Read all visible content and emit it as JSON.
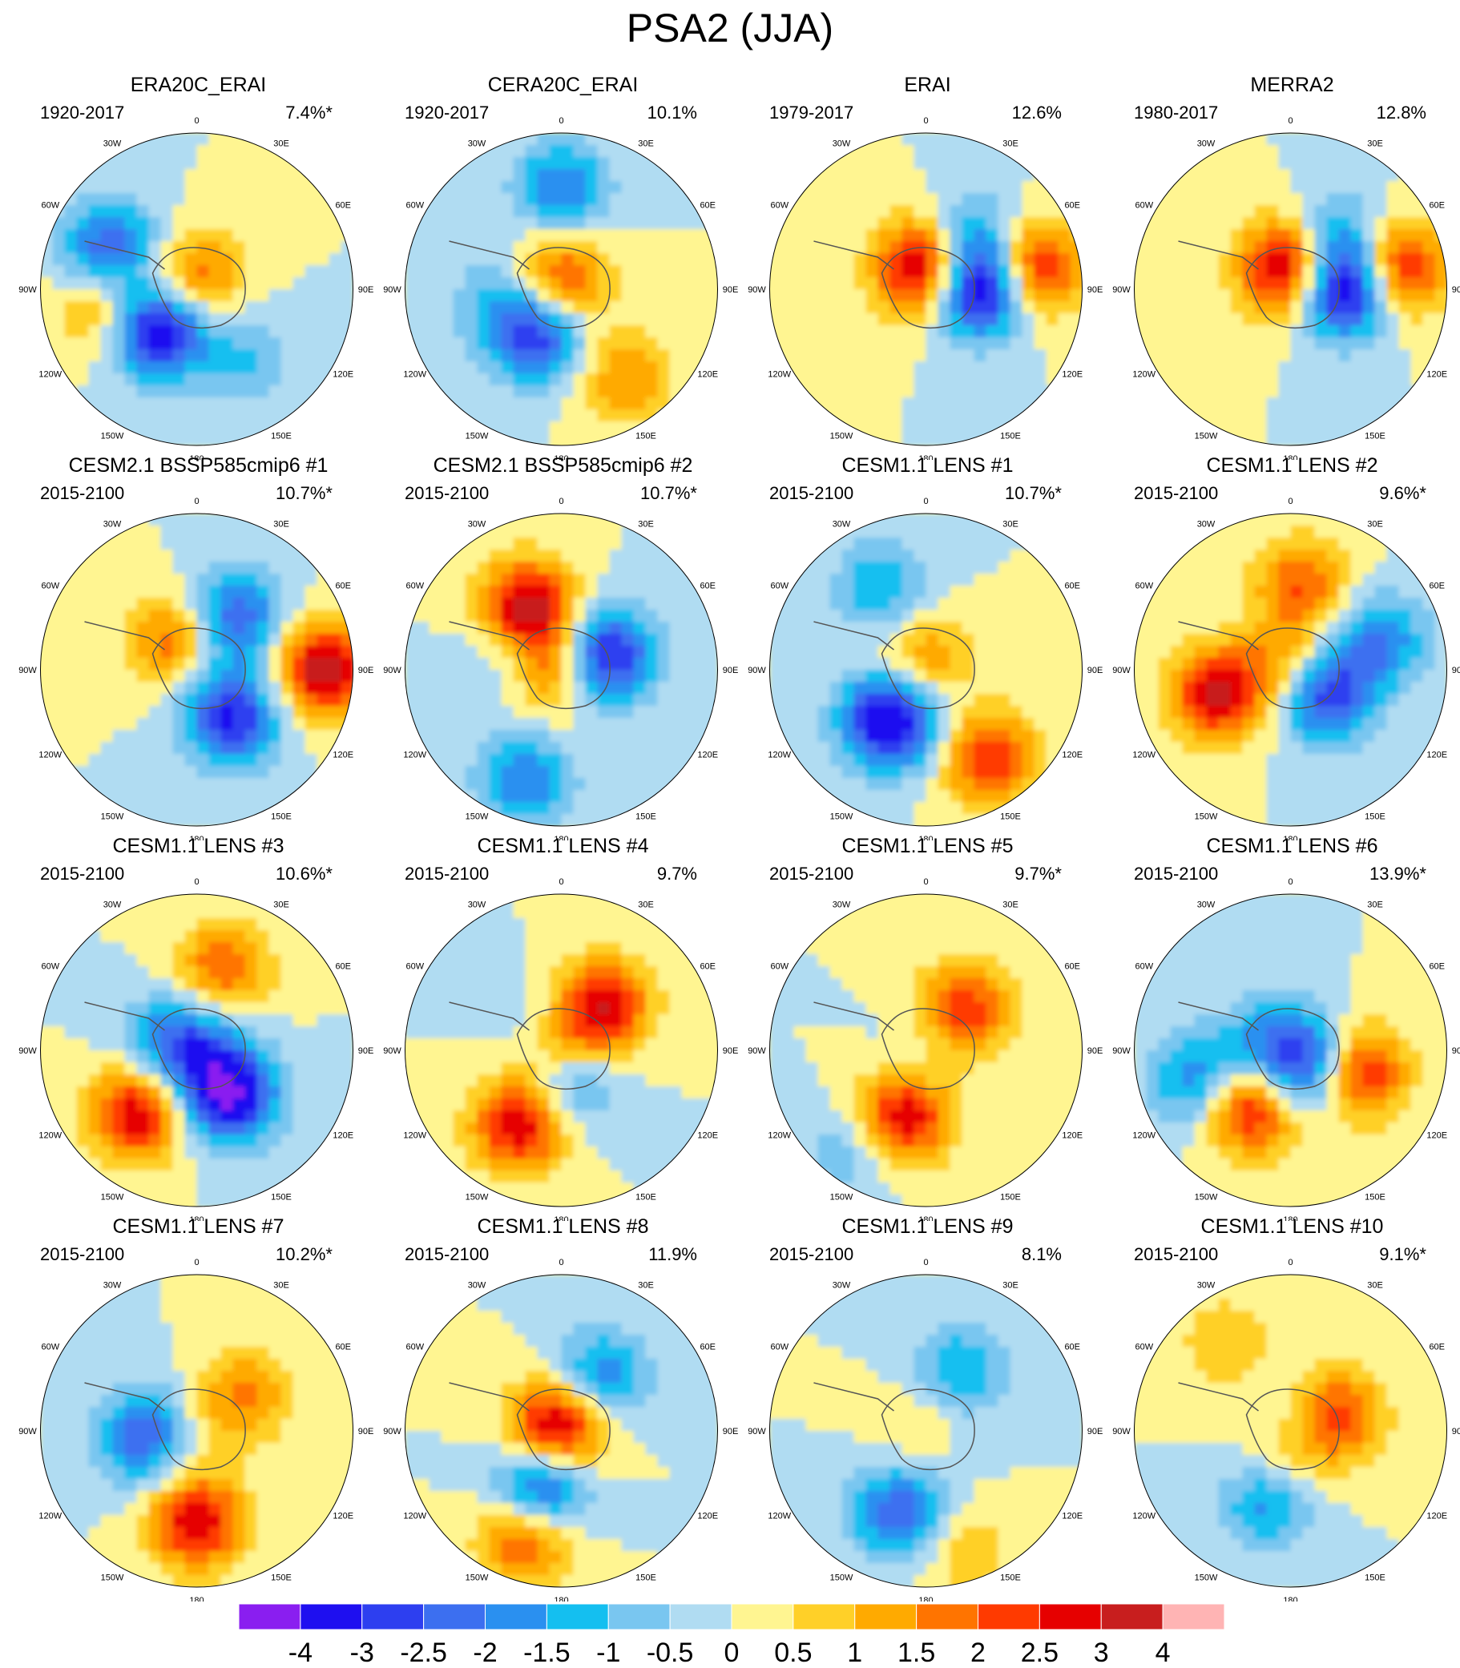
{
  "title": "PSA2 (JJA)",
  "lon_labels": [
    "0",
    "30E",
    "60E",
    "90E",
    "120E",
    "150E",
    "180",
    "150W",
    "120W",
    "90W",
    "60W",
    "30W"
  ],
  "panels": [
    {
      "title": "ERA20C_ERAI",
      "period": "1920-2017",
      "variance": "7.4%*"
    },
    {
      "title": "CERA20C_ERAI",
      "period": "1920-2017",
      "variance": "10.1%"
    },
    {
      "title": "ERAI",
      "period": "1979-2017",
      "variance": "12.6%"
    },
    {
      "title": "MERRA2",
      "period": "1980-2017",
      "variance": "12.8%"
    },
    {
      "title": "CESM2.1 BSSP585cmip6 #1",
      "period": "2015-2100",
      "variance": "10.7%*"
    },
    {
      "title": "CESM2.1 BSSP585cmip6 #2",
      "period": "2015-2100",
      "variance": "10.7%*"
    },
    {
      "title": "CESM1.1 LENS #1",
      "period": "2015-2100",
      "variance": "10.7%*"
    },
    {
      "title": "CESM1.1 LENS #2",
      "period": "2015-2100",
      "variance": "9.6%*"
    },
    {
      "title": "CESM1.1 LENS #3",
      "period": "2015-2100",
      "variance": "10.6%*"
    },
    {
      "title": "CESM1.1 LENS #4",
      "period": "2015-2100",
      "variance": "9.7%"
    },
    {
      "title": "CESM1.1 LENS #5",
      "period": "2015-2100",
      "variance": "9.7%*"
    },
    {
      "title": "CESM1.1 LENS #6",
      "period": "2015-2100",
      "variance": "13.9%*"
    },
    {
      "title": "CESM1.1 LENS #7",
      "period": "2015-2100",
      "variance": "10.2%*"
    },
    {
      "title": "CESM1.1 LENS #8",
      "period": "2015-2100",
      "variance": "11.9%"
    },
    {
      "title": "CESM1.1 LENS #9",
      "period": "2015-2100",
      "variance": "8.1%"
    },
    {
      "title": "CESM1.1 LENS #10",
      "period": "2015-2100",
      "variance": "9.1%*"
    }
  ],
  "colorbar": {
    "labels": [
      "-4",
      "-3",
      "-2.5",
      "-2",
      "-1.5",
      "-1",
      "-0.5",
      "0",
      "0.5",
      "1",
      "1.5",
      "2",
      "2.5",
      "3",
      "4"
    ],
    "colors": [
      "#8a1ef0",
      "#1e0ff0",
      "#2d3ff0",
      "#3c6ff0",
      "#2a90f0",
      "#14bff0",
      "#79c6f0",
      "#b0dcf2",
      "#fff591",
      "#ffd028",
      "#ffaa00",
      "#ff7400",
      "#ff3a00",
      "#e60000",
      "#c81e1e",
      "#ffb4b4"
    ]
  },
  "lobes": [
    [
      [
        -1,
        0.55,
        0.4
      ],
      [
        -4,
        0.35,
        0.62
      ],
      [
        3,
        -0.03,
        0.52
      ],
      [
        -2.5,
        -0.62,
        0.32
      ],
      [
        1.5,
        0.6,
        0.72
      ],
      [
        -1,
        -0.05,
        0.9
      ]
    ],
    [
      [
        -1,
        0.42,
        0.72
      ],
      [
        -3,
        0.32,
        0.58
      ],
      [
        2.5,
        -0.05,
        0.5
      ],
      [
        -2,
        -0.65,
        0.5
      ],
      [
        1.5,
        0.7,
        0.4
      ]
    ],
    [
      [
        -4,
        0.35,
        0.25
      ],
      [
        3,
        0.7,
        0.22
      ],
      [
        3,
        -0.15,
        0.48
      ],
      [
        -1.5,
        -0.45,
        0.62
      ],
      [
        0.5,
        0.1,
        0.88
      ]
    ],
    [
      [
        -4,
        0.35,
        0.25
      ],
      [
        3,
        0.7,
        0.22
      ],
      [
        3,
        -0.15,
        0.48
      ],
      [
        -1.5,
        -0.45,
        0.62
      ],
      [
        0.5,
        0.1,
        0.88
      ]
    ],
    [
      [
        -3,
        0.4,
        0.4
      ],
      [
        3.5,
        0.82,
        0.25
      ],
      [
        3,
        -0.18,
        0.4
      ],
      [
        -2.5,
        -0.42,
        0.6
      ],
      [
        -1.5,
        0.05,
        0.95
      ]
    ],
    [
      [
        -3.5,
        0.3,
        0.2
      ],
      [
        3.5,
        0.45,
        0.92
      ],
      [
        -2,
        0.75,
        0.55
      ],
      [
        2,
        0.05,
        0.8
      ],
      [
        -1,
        -0.35,
        0.3
      ]
    ],
    [
      [
        -4,
        0.4,
        0.6
      ],
      [
        2.5,
        0.7,
        0.4
      ],
      [
        2.5,
        -0.05,
        0.48
      ],
      [
        -1.5,
        -0.6,
        0.42
      ],
      [
        -1,
        0.0,
        0.85
      ]
    ],
    [
      [
        -3.5,
        0.25,
        0.35
      ],
      [
        3,
        0.5,
        0.7
      ],
      [
        -2,
        0.6,
        0.2
      ],
      [
        2,
        -0.55,
        0.52
      ],
      [
        2,
        0.0,
        0.85
      ]
    ],
    [
      [
        -4,
        0.35,
        0.4
      ],
      [
        3,
        0.55,
        0.62
      ],
      [
        2,
        -0.55,
        0.55
      ],
      [
        -1.5,
        0.0,
        0.95
      ],
      [
        -1.5,
        -0.2,
        0.3
      ]
    ],
    [
      [
        3,
        0.55,
        0.58
      ],
      [
        -2,
        0.2,
        0.45
      ],
      [
        3,
        -0.38,
        0.62
      ],
      [
        2,
        0.02,
        0.85
      ],
      [
        -1,
        0.2,
        0.9
      ]
    ],
    [
      [
        3,
        0.45,
        0.55
      ],
      [
        -1.5,
        0.0,
        0.3
      ],
      [
        2.5,
        -0.35,
        0.62
      ],
      [
        -1,
        0.8,
        0.6
      ],
      [
        1,
        0.0,
        0.9
      ]
    ],
    [
      [
        -3,
        0.15,
        0.35
      ],
      [
        3,
        0.45,
        0.6
      ],
      [
        3,
        -0.45,
        0.8
      ],
      [
        -2,
        0.62,
        0.7
      ],
      [
        -1.5,
        -0.15,
        0.3
      ]
    ],
    [
      [
        3,
        0.58,
        0.5
      ],
      [
        -2,
        0.35,
        0.72
      ],
      [
        1.5,
        -0.4,
        0.65
      ],
      [
        1,
        0.05,
        0.9
      ],
      [
        -1,
        -0.2,
        0.3
      ]
    ],
    [
      [
        -3,
        0.4,
        0.55
      ],
      [
        2.5,
        0.72,
        0.55
      ],
      [
        -2,
        -0.42,
        0.6
      ],
      [
        2.5,
        -0.05,
        0.4
      ],
      [
        1,
        0.0,
        0.9
      ]
    ],
    [
      [
        -2.5,
        0.55,
        0.55
      ],
      [
        -1.5,
        -0.45,
        0.58
      ],
      [
        1,
        0.82,
        0.45
      ],
      [
        1,
        0.0,
        0.9
      ],
      [
        -0.5,
        0.1,
        0.3
      ]
    ],
    [
      [
        -2,
        0.45,
        0.55
      ],
      [
        2,
        0.15,
        0.55
      ],
      [
        2.5,
        -0.3,
        0.7
      ],
      [
        -1.5,
        0.0,
        0.2
      ],
      [
        1,
        -0.7,
        0.4
      ]
    ]
  ]
}
